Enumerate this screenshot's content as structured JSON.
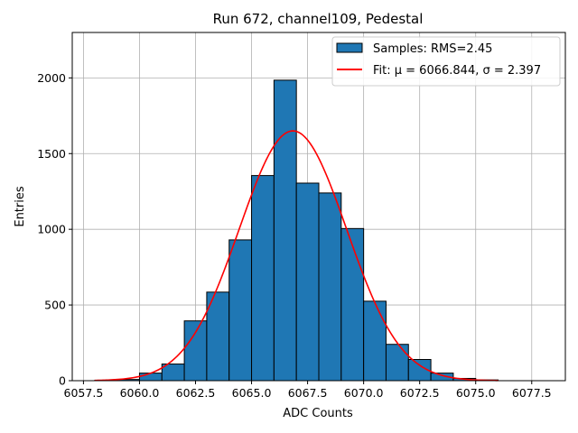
{
  "chart_data": {
    "type": "bar",
    "title": "Run 672, channel109, Pedestal",
    "xlabel": "ADC Counts",
    "ylabel": "Entries",
    "xlim": [
      6057.0,
      6079.0
    ],
    "ylim": [
      0,
      2300
    ],
    "xticks": [
      6057.5,
      6060.0,
      6062.5,
      6065.0,
      6067.5,
      6070.0,
      6072.5,
      6075.0,
      6077.5
    ],
    "xtick_labels": [
      "6057.5",
      "6060.0",
      "6062.5",
      "6065.0",
      "6067.5",
      "6070.0",
      "6072.5",
      "6075.0",
      "6077.5"
    ],
    "yticks": [
      0,
      500,
      1000,
      1500,
      2000
    ],
    "ytick_labels": [
      "0",
      "500",
      "1000",
      "1500",
      "2000"
    ],
    "grid": true,
    "legend_position": "top-right",
    "bins": [
      {
        "left": 6058,
        "right": 6059,
        "count": 2
      },
      {
        "left": 6059,
        "right": 6060,
        "count": 8
      },
      {
        "left": 6060,
        "right": 6061,
        "count": 50
      },
      {
        "left": 6061,
        "right": 6062,
        "count": 110
      },
      {
        "left": 6062,
        "right": 6063,
        "count": 395
      },
      {
        "left": 6063,
        "right": 6064,
        "count": 585
      },
      {
        "left": 6064,
        "right": 6065,
        "count": 930
      },
      {
        "left": 6065,
        "right": 6066,
        "count": 1355
      },
      {
        "left": 6066,
        "right": 6067,
        "count": 1985
      },
      {
        "left": 6067,
        "right": 6068,
        "count": 1305
      },
      {
        "left": 6068,
        "right": 6069,
        "count": 1240
      },
      {
        "left": 6069,
        "right": 6070,
        "count": 1005
      },
      {
        "left": 6070,
        "right": 6071,
        "count": 525
      },
      {
        "left": 6071,
        "right": 6072,
        "count": 240
      },
      {
        "left": 6072,
        "right": 6073,
        "count": 140
      },
      {
        "left": 6073,
        "right": 6074,
        "count": 50
      },
      {
        "left": 6074,
        "right": 6075,
        "count": 15
      },
      {
        "left": 6075,
        "right": 6076,
        "count": 5
      }
    ],
    "series": [
      {
        "name": "Samples: RMS=2.45",
        "kind": "histogram",
        "color": "#1f77b4",
        "edge_color": "#000000"
      },
      {
        "name": "Fit: μ = 6066.844, σ = 2.397",
        "kind": "gaussian-fit",
        "color": "#ff0000",
        "mu": 6066.844,
        "sigma": 2.397,
        "amplitude": 1650,
        "x_range": [
          6058,
          6076
        ]
      }
    ]
  }
}
